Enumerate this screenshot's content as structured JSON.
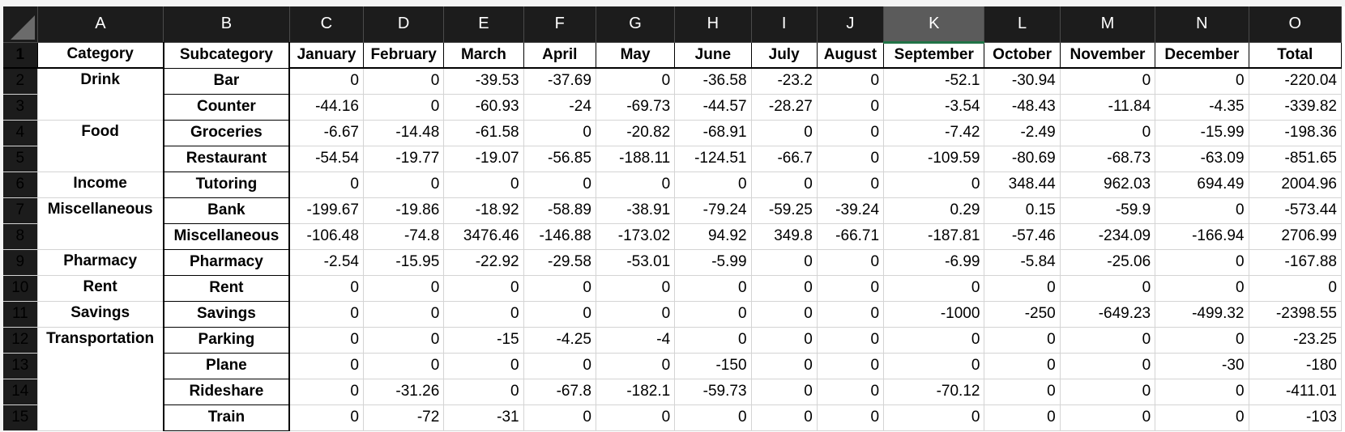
{
  "sheet": {
    "column_letters": [
      "A",
      "B",
      "C",
      "D",
      "E",
      "F",
      "G",
      "H",
      "I",
      "J",
      "K",
      "L",
      "M",
      "N",
      "O"
    ],
    "selected_column": "K",
    "headers": [
      "Category",
      "Subcategory",
      "January",
      "February",
      "March",
      "April",
      "May",
      "June",
      "July",
      "August",
      "September",
      "October",
      "November",
      "December",
      "Total"
    ],
    "rows": [
      {
        "num": "2",
        "category": "Drink",
        "subcategory": "Bar",
        "values": [
          "0",
          "0",
          "-39.53",
          "-37.69",
          "0",
          "-36.58",
          "-23.2",
          "0",
          "-52.1",
          "-30.94",
          "0",
          "0",
          "-220.04"
        ]
      },
      {
        "num": "3",
        "category": "",
        "subcategory": "Counter",
        "values": [
          "-44.16",
          "0",
          "-60.93",
          "-24",
          "-69.73",
          "-44.57",
          "-28.27",
          "0",
          "-3.54",
          "-48.43",
          "-11.84",
          "-4.35",
          "-339.82"
        ]
      },
      {
        "num": "4",
        "category": "Food",
        "subcategory": "Groceries",
        "values": [
          "-6.67",
          "-14.48",
          "-61.58",
          "0",
          "-20.82",
          "-68.91",
          "0",
          "0",
          "-7.42",
          "-2.49",
          "0",
          "-15.99",
          "-198.36"
        ]
      },
      {
        "num": "5",
        "category": "",
        "subcategory": "Restaurant",
        "values": [
          "-54.54",
          "-19.77",
          "-19.07",
          "-56.85",
          "-188.11",
          "-124.51",
          "-66.7",
          "0",
          "-109.59",
          "-80.69",
          "-68.73",
          "-63.09",
          "-851.65"
        ]
      },
      {
        "num": "6",
        "category": "Income",
        "subcategory": "Tutoring",
        "values": [
          "0",
          "0",
          "0",
          "0",
          "0",
          "0",
          "0",
          "0",
          "0",
          "348.44",
          "962.03",
          "694.49",
          "2004.96"
        ]
      },
      {
        "num": "7",
        "category": "Miscellaneous",
        "subcategory": "Bank",
        "values": [
          "-199.67",
          "-19.86",
          "-18.92",
          "-58.89",
          "-38.91",
          "-79.24",
          "-59.25",
          "-39.24",
          "0.29",
          "0.15",
          "-59.9",
          "0",
          "-573.44"
        ]
      },
      {
        "num": "8",
        "category": "",
        "subcategory": "Miscellaneous",
        "values": [
          "-106.48",
          "-74.8",
          "3476.46",
          "-146.88",
          "-173.02",
          "94.92",
          "349.8",
          "-66.71",
          "-187.81",
          "-57.46",
          "-234.09",
          "-166.94",
          "2706.99"
        ]
      },
      {
        "num": "9",
        "category": "Pharmacy",
        "subcategory": "Pharmacy",
        "values": [
          "-2.54",
          "-15.95",
          "-22.92",
          "-29.58",
          "-53.01",
          "-5.99",
          "0",
          "0",
          "-6.99",
          "-5.84",
          "-25.06",
          "0",
          "-167.88"
        ]
      },
      {
        "num": "10",
        "category": "Rent",
        "subcategory": "Rent",
        "values": [
          "0",
          "0",
          "0",
          "0",
          "0",
          "0",
          "0",
          "0",
          "0",
          "0",
          "0",
          "0",
          "0"
        ]
      },
      {
        "num": "11",
        "category": "Savings",
        "subcategory": "Savings",
        "values": [
          "0",
          "0",
          "0",
          "0",
          "0",
          "0",
          "0",
          "0",
          "-1000",
          "-250",
          "-649.23",
          "-499.32",
          "-2398.55"
        ]
      },
      {
        "num": "12",
        "category": "Transportation",
        "subcategory": "Parking",
        "values": [
          "0",
          "0",
          "-15",
          "-4.25",
          "-4",
          "0",
          "0",
          "0",
          "0",
          "0",
          "0",
          "0",
          "-23.25"
        ]
      },
      {
        "num": "13",
        "category": "",
        "subcategory": "Plane",
        "values": [
          "0",
          "0",
          "0",
          "0",
          "0",
          "-150",
          "0",
          "0",
          "0",
          "0",
          "0",
          "-30",
          "-180"
        ]
      },
      {
        "num": "14",
        "category": "",
        "subcategory": "Rideshare",
        "values": [
          "0",
          "-31.26",
          "0",
          "-67.8",
          "-182.1",
          "-59.73",
          "0",
          "0",
          "-70.12",
          "0",
          "0",
          "0",
          "-411.01"
        ]
      },
      {
        "num": "15",
        "category": "",
        "subcategory": "Train",
        "values": [
          "0",
          "-72",
          "-31",
          "0",
          "0",
          "0",
          "0",
          "0",
          "0",
          "0",
          "0",
          "0",
          "-103"
        ]
      }
    ]
  }
}
